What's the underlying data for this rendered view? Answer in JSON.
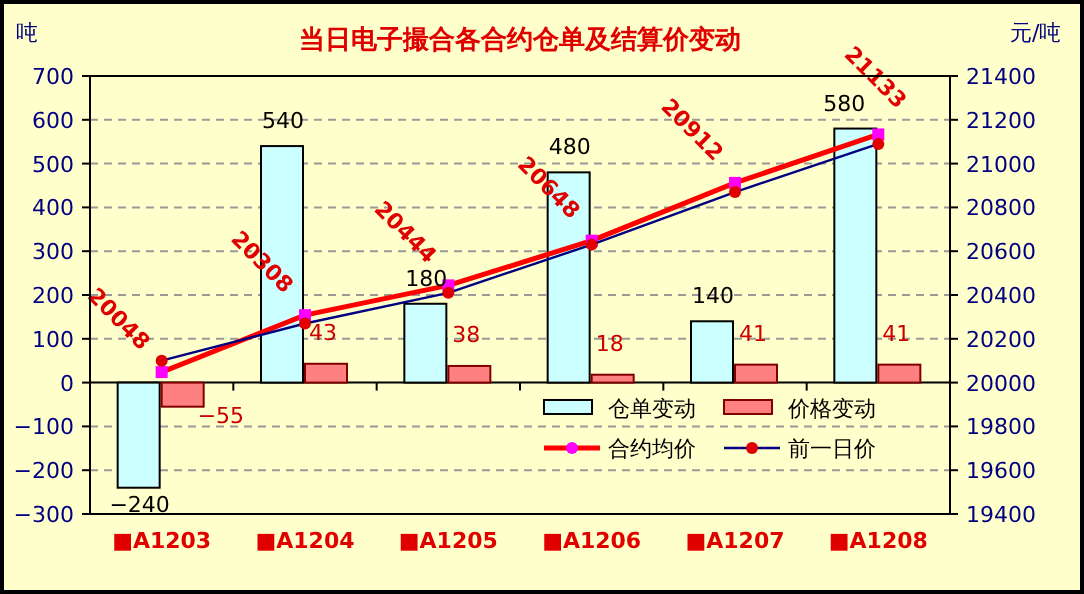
{
  "chart_data": {
    "type": "bar",
    "title": "当日电子撮合各合约仓单及结算价变动",
    "ylabel": "吨",
    "y2label": "元/吨",
    "categories": [
      "■A1203",
      "■A1204",
      "■A1205",
      "■A1206",
      "■A1207",
      "■A1208"
    ],
    "series": [
      {
        "name": "仓单变动",
        "color": "#ccffff",
        "values": [
          -240,
          540,
          180,
          480,
          140,
          580
        ],
        "value_labels": [
          "−240",
          "540",
          "180",
          "480",
          "140",
          "580"
        ]
      },
      {
        "name": "价格变动",
        "color": "#ff8080",
        "values": [
          -55,
          43,
          38,
          18,
          41,
          41
        ],
        "value_labels": [
          "−55",
          "43",
          "38",
          "18",
          "41",
          "41"
        ]
      },
      {
        "name": "合约均价",
        "type": "line",
        "axis": "y2",
        "color": "#ff0000",
        "marker": "square",
        "values": [
          20048,
          20308,
          20444,
          20648,
          20912,
          21133
        ],
        "value_labels": [
          "20048",
          "20308",
          "20444",
          "20648",
          "20912",
          "21133"
        ]
      },
      {
        "name": "前一日价",
        "type": "line",
        "axis": "y2",
        "color": "#000080",
        "marker": "circle",
        "values": [
          20100,
          20270,
          20410,
          20630,
          20870,
          21090
        ]
      }
    ],
    "ylim": [
      -300,
      700
    ],
    "yticks": [
      -300,
      -200,
      -100,
      0,
      100,
      200,
      300,
      400,
      500,
      600,
      700
    ],
    "y2lim": [
      19400,
      21400
    ],
    "y2ticks": [
      19400,
      19600,
      19800,
      20000,
      20200,
      20400,
      20600,
      20800,
      21000,
      21200,
      21400
    ],
    "grid": "y",
    "legend": "bottom right"
  }
}
